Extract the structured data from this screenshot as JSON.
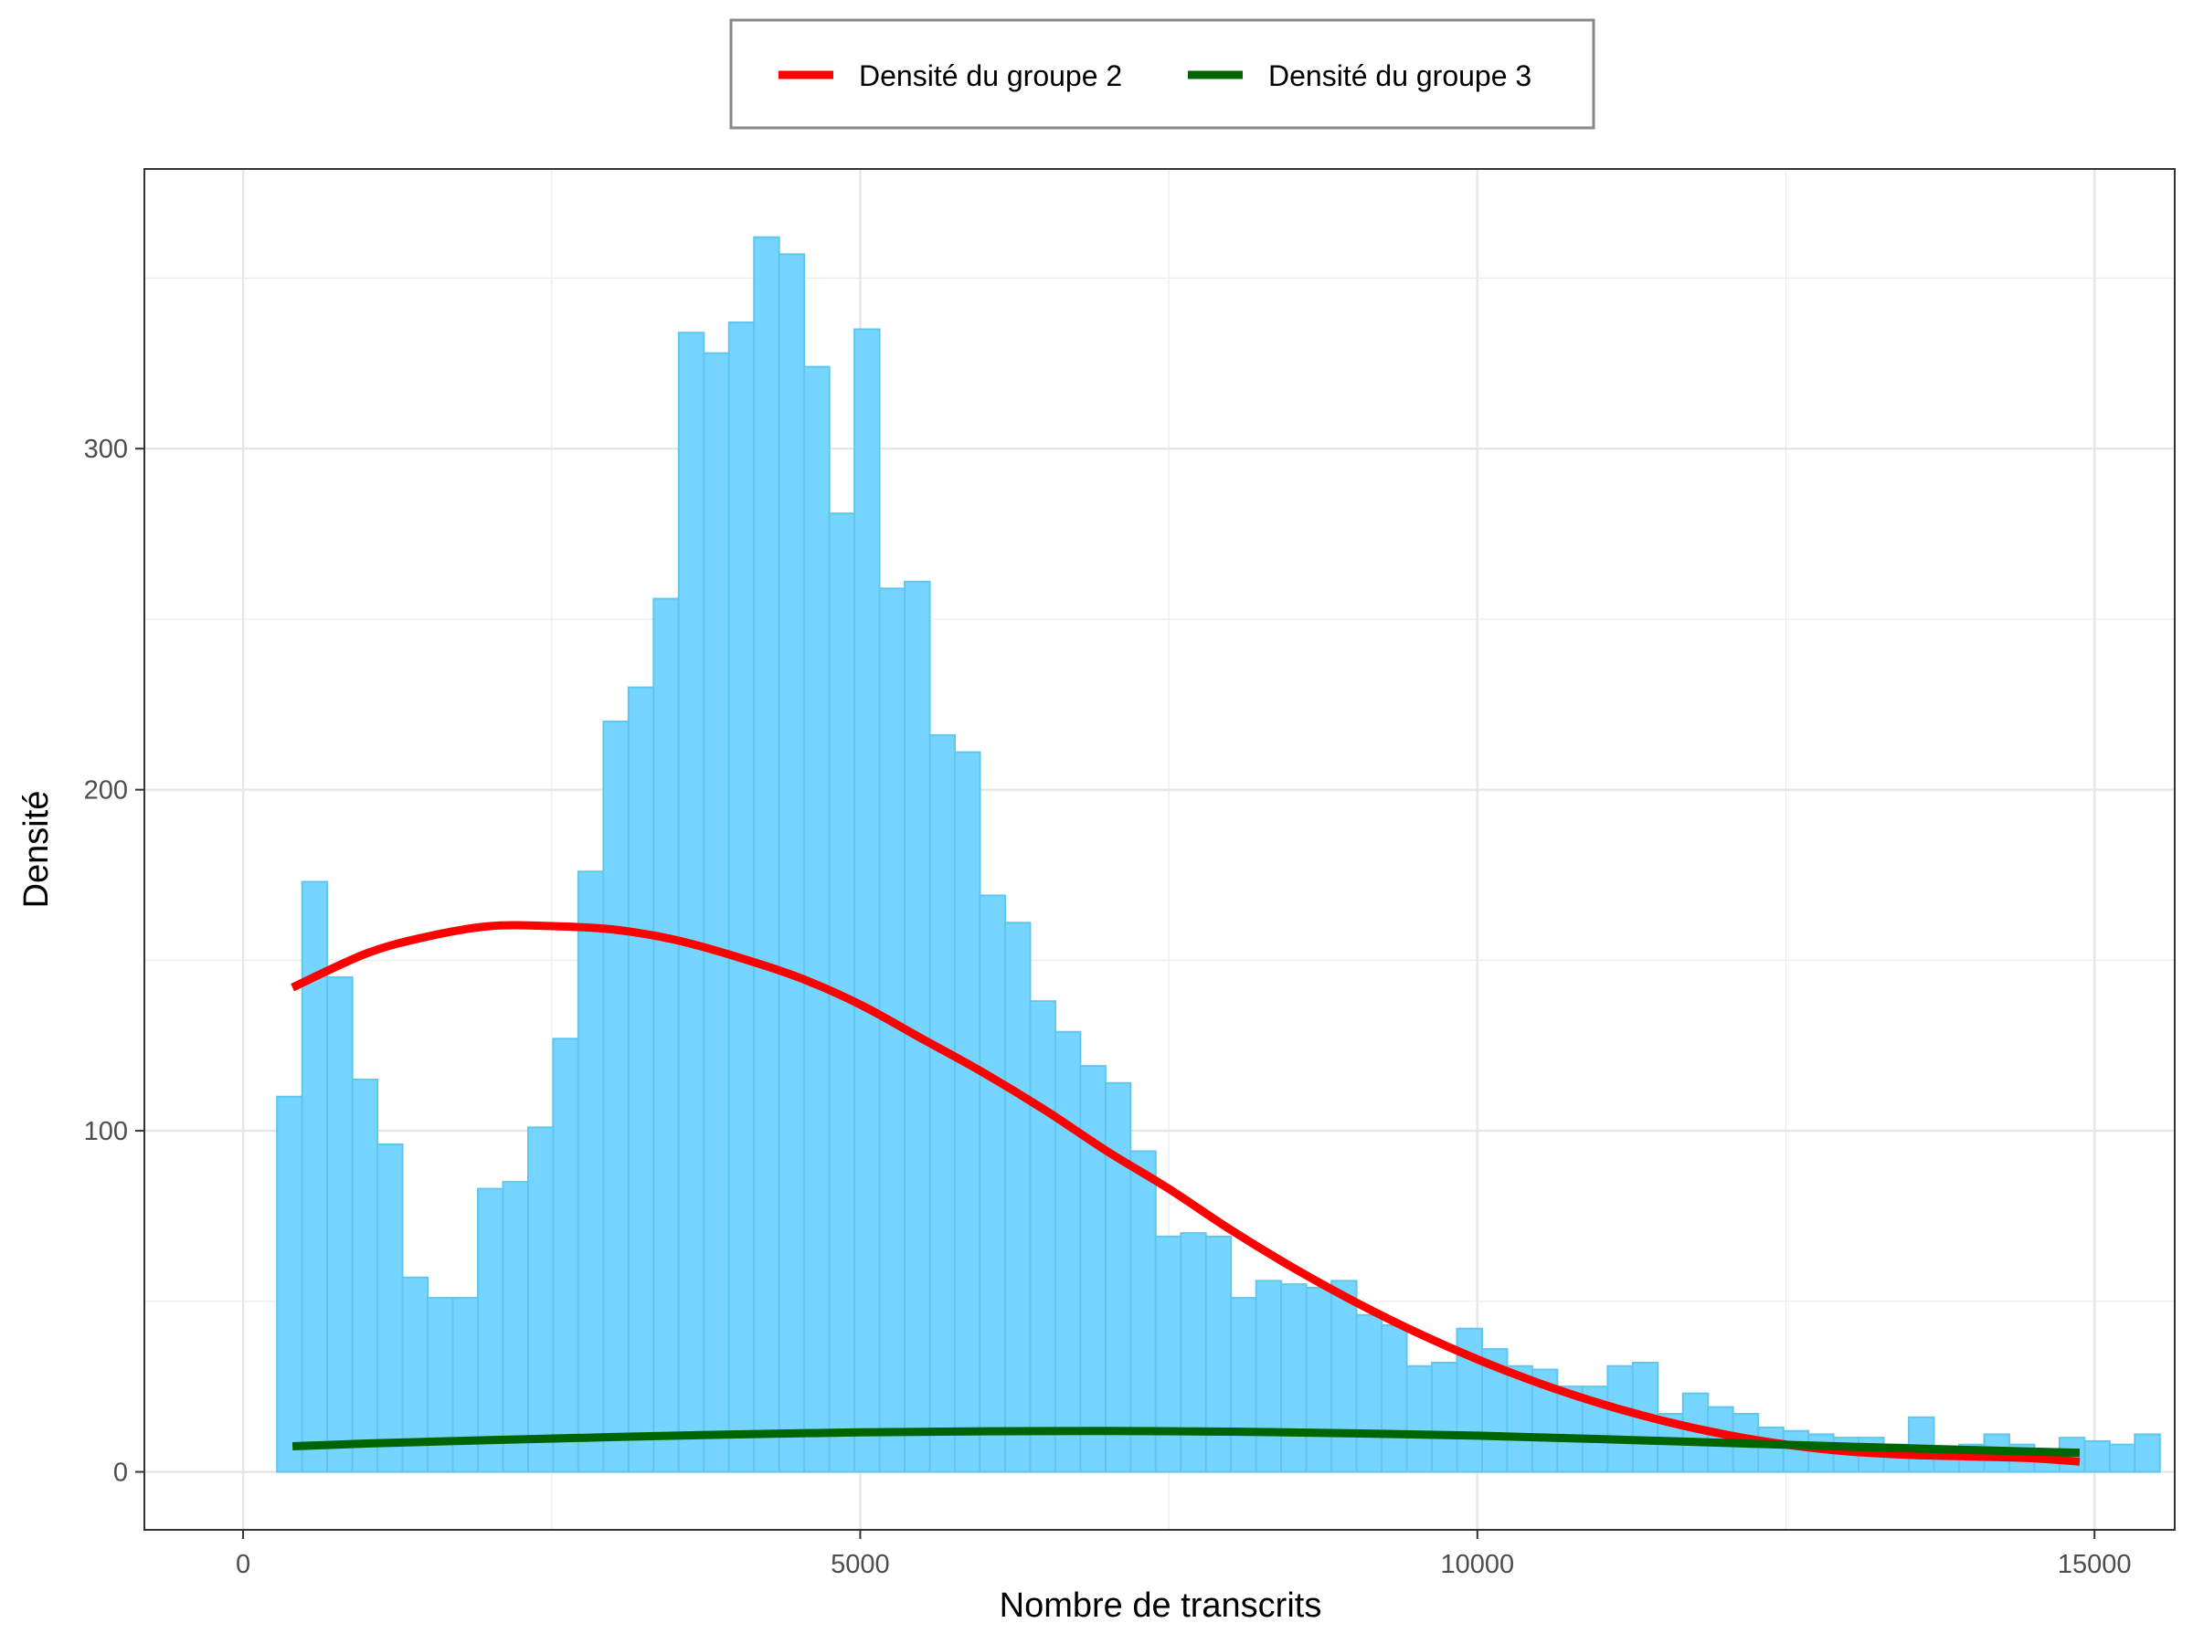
{
  "chart_data": {
    "type": "bar",
    "title": "",
    "xlabel": "Nombre de transcrits",
    "ylabel": "Densité",
    "xlim": [
      -800,
      15650
    ],
    "ylim": [
      -17,
      382
    ],
    "x_ticks": [
      0,
      5000,
      10000,
      15000
    ],
    "x_tick_labels": [
      "0",
      "5000",
      "10000",
      "15000"
    ],
    "y_ticks": [
      0,
      100,
      200,
      300
    ],
    "y_tick_labels": [
      "0",
      "100",
      "200",
      "300"
    ],
    "x_minor_grid": [
      2500,
      7500,
      12500
    ],
    "y_minor_grid": [
      50,
      150,
      250,
      350
    ],
    "grid": true,
    "legend_placement": "top",
    "histogram": {
      "bin_start": 275,
      "bin_width": 203.4,
      "counts": [
        110,
        173,
        145,
        115,
        96,
        57,
        51,
        51,
        83,
        85,
        101,
        127,
        176,
        220,
        230,
        256,
        334,
        328,
        337,
        362,
        357,
        324,
        281,
        335,
        259,
        261,
        216,
        211,
        169,
        161,
        138,
        129,
        119,
        114,
        94,
        69,
        70,
        69,
        51,
        56,
        55,
        54,
        56,
        46,
        43,
        31,
        32,
        42,
        36,
        31,
        30,
        25,
        25,
        31,
        32,
        17,
        23,
        19,
        17,
        13,
        12,
        11,
        10,
        10,
        8,
        16,
        7,
        8,
        11,
        8,
        6,
        10,
        9,
        8,
        11
      ],
      "fill": "#75D5FF",
      "stroke": "#5FC6EE"
    },
    "series": [
      {
        "name": "Densité du groupe 2",
        "color": "#FF0000",
        "x": [
          400,
          1000,
          1500,
          2000,
          2500,
          3000,
          3500,
          4000,
          4500,
          5000,
          5500,
          6000,
          6500,
          7000,
          7500,
          8000,
          8500,
          9000,
          9500,
          10000,
          10500,
          11000,
          11500,
          12000,
          12500,
          13000,
          13500,
          14000,
          14500,
          14880
        ],
        "y": [
          142,
          152,
          157,
          160,
          160,
          159,
          156,
          151,
          145,
          137,
          127,
          117,
          106,
          94,
          83,
          71,
          60,
          50,
          41,
          33,
          26,
          20,
          15,
          11,
          8,
          6,
          5,
          4.5,
          4,
          3
        ]
      },
      {
        "name": "Densité du groupe 3",
        "color": "#006400",
        "x": [
          400,
          1000,
          2000,
          3000,
          4000,
          5000,
          6000,
          7000,
          8000,
          9000,
          10000,
          11000,
          12000,
          13000,
          14000,
          14880
        ],
        "y": [
          7.5,
          8.3,
          9.3,
          10.2,
          11,
          11.6,
          11.9,
          12,
          11.8,
          11.3,
          10.6,
          9.6,
          8.5,
          7.4,
          6.4,
          5.6
        ]
      }
    ]
  }
}
